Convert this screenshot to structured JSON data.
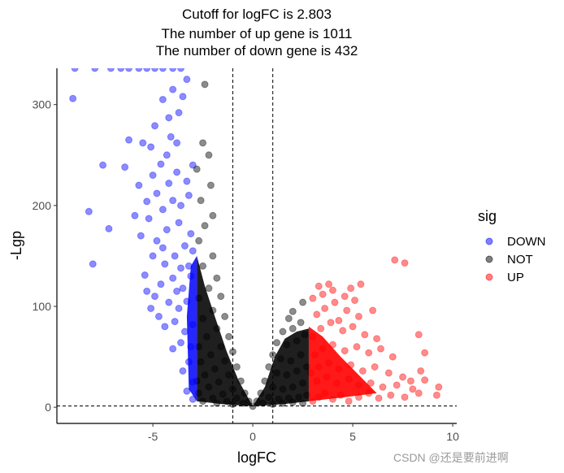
{
  "chart_data": {
    "type": "scatter",
    "title_lines": [
      "Cutoff for logFC is 2.803",
      "The number of up gene is 1011",
      "The number of down gene is 432"
    ],
    "xlabel": "logFC",
    "ylabel": "-Lgp",
    "xlim": [
      -9.8,
      10.2
    ],
    "ylim": [
      -16,
      336
    ],
    "x_ticks": [
      -5,
      0,
      5,
      10
    ],
    "y_ticks": [
      0,
      100,
      200,
      300
    ],
    "x_tick_labels": [
      "-5",
      "0",
      "5",
      "10"
    ],
    "y_tick_labels": [
      "0",
      "100",
      "200",
      "300"
    ],
    "vlines": [
      -1,
      1
    ],
    "hline": 1.3,
    "cutoff_logfc": 2.803,
    "grid": false,
    "legend": {
      "title": "sig",
      "placement": "right",
      "entries": [
        {
          "label": "DOWN",
          "color": "#0000ff"
        },
        {
          "label": "NOT",
          "color": "#000000"
        },
        {
          "label": "UP",
          "color": "#ff0000"
        }
      ]
    },
    "counts": {
      "up": 1011,
      "down": 432
    },
    "series": [
      {
        "name": "DOWN",
        "color": "#0000ff",
        "points": [
          [
            -8.9,
            336
          ],
          [
            -7.9,
            336
          ],
          [
            -7.1,
            336
          ],
          [
            -6.6,
            336
          ],
          [
            -6.2,
            336
          ],
          [
            -5.7,
            336
          ],
          [
            -5.3,
            336
          ],
          [
            -4.9,
            336
          ],
          [
            -4.5,
            336
          ],
          [
            -4.0,
            336
          ],
          [
            -3.6,
            336
          ],
          [
            -9.0,
            306
          ],
          [
            -7.5,
            240
          ],
          [
            -8.2,
            194
          ],
          [
            -8.0,
            142
          ],
          [
            -7.2,
            177
          ],
          [
            -6.2,
            265
          ],
          [
            -6.4,
            238
          ],
          [
            -5.5,
            262
          ],
          [
            -4.9,
            279
          ],
          [
            -4.5,
            305
          ],
          [
            -4.0,
            315
          ],
          [
            -3.5,
            308
          ],
          [
            -3.3,
            325
          ],
          [
            -4.2,
            287
          ],
          [
            -3.7,
            292
          ],
          [
            -5.1,
            258
          ],
          [
            -5.7,
            220
          ],
          [
            -5.0,
            230
          ],
          [
            -4.6,
            241
          ],
          [
            -4.2,
            222
          ],
          [
            -3.8,
            233
          ],
          [
            -3.3,
            224
          ],
          [
            -3.0,
            240
          ],
          [
            -3.2,
            210
          ],
          [
            -3.6,
            200
          ],
          [
            -4.0,
            205
          ],
          [
            -4.5,
            196
          ],
          [
            -5.2,
            187
          ],
          [
            -5.6,
            170
          ],
          [
            -4.8,
            165
          ],
          [
            -4.3,
            176
          ],
          [
            -3.7,
            183
          ],
          [
            -3.1,
            172
          ],
          [
            -3.4,
            160
          ],
          [
            -3.9,
            150
          ],
          [
            -4.4,
            142
          ],
          [
            -5.0,
            150
          ],
          [
            -5.4,
            131
          ],
          [
            -4.6,
            122
          ],
          [
            -4.0,
            128
          ],
          [
            -3.5,
            118
          ],
          [
            -3.1,
            130
          ],
          [
            -3.3,
            105
          ],
          [
            -3.7,
            98
          ],
          [
            -4.2,
            104
          ],
          [
            -4.7,
            90
          ],
          [
            -5.1,
            98
          ],
          [
            -4.4,
            80
          ],
          [
            -3.9,
            85
          ],
          [
            -3.4,
            75
          ],
          [
            -3.0,
            82
          ],
          [
            -3.1,
            60
          ],
          [
            -3.6,
            64
          ],
          [
            -4.0,
            58
          ],
          [
            -3.2,
            45
          ],
          [
            -3.5,
            36
          ],
          [
            -3.0,
            25
          ],
          [
            -3.3,
            16
          ],
          [
            -3.0,
            8
          ],
          [
            -4.3,
            250
          ],
          [
            -4.8,
            212
          ],
          [
            -5.3,
            204
          ],
          [
            -3.8,
            262
          ],
          [
            -4.1,
            268
          ],
          [
            -5.9,
            190
          ],
          [
            -4.9,
            110
          ],
          [
            -3.8,
            115
          ],
          [
            -3.2,
            140
          ],
          [
            -3.0,
            155
          ],
          [
            -3.6,
            138
          ],
          [
            -4.5,
            158
          ],
          [
            -5.3,
            115
          ]
        ]
      },
      {
        "name": "NOT",
        "color": "#000000",
        "points": [
          [
            -2.4,
            320
          ],
          [
            -2.2,
            250
          ],
          [
            -2.5,
            262
          ],
          [
            -2.8,
            236
          ],
          [
            -2.1,
            220
          ],
          [
            -2.6,
            205
          ],
          [
            -2.0,
            190
          ],
          [
            -2.4,
            180
          ],
          [
            -2.7,
            165
          ],
          [
            -2.0,
            150
          ],
          [
            -2.5,
            140
          ],
          [
            -1.8,
            128
          ],
          [
            -2.2,
            118
          ],
          [
            -2.7,
            108
          ],
          [
            -1.6,
            110
          ],
          [
            -2.0,
            96
          ],
          [
            -2.5,
            88
          ],
          [
            -1.4,
            90
          ],
          [
            -1.8,
            78
          ],
          [
            -2.3,
            70
          ],
          [
            -2.7,
            60
          ],
          [
            -1.2,
            70
          ],
          [
            -1.6,
            60
          ],
          [
            -2.1,
            52
          ],
          [
            -2.6,
            45
          ],
          [
            -1.0,
            55
          ],
          [
            -1.4,
            46
          ],
          [
            -1.9,
            38
          ],
          [
            -2.4,
            32
          ],
          [
            -2.8,
            26
          ],
          [
            -0.8,
            40
          ],
          [
            -1.2,
            32
          ],
          [
            -1.7,
            25
          ],
          [
            -2.2,
            20
          ],
          [
            -2.7,
            14
          ],
          [
            -0.6,
            26
          ],
          [
            -1.0,
            18
          ],
          [
            -1.5,
            13
          ],
          [
            -2.0,
            9
          ],
          [
            -2.5,
            6
          ],
          [
            -0.4,
            14
          ],
          [
            -0.8,
            9
          ],
          [
            -1.3,
            6
          ],
          [
            -1.8,
            4
          ],
          [
            -0.2,
            6
          ],
          [
            -0.5,
            4
          ],
          [
            -1.0,
            3
          ],
          [
            0.0,
            1
          ],
          [
            0.2,
            6
          ],
          [
            0.5,
            4
          ],
          [
            1.0,
            3
          ],
          [
            1.5,
            4
          ],
          [
            2.0,
            5
          ],
          [
            2.5,
            4
          ],
          [
            0.4,
            14
          ],
          [
            0.8,
            10
          ],
          [
            1.3,
            8
          ],
          [
            1.8,
            9
          ],
          [
            2.3,
            10
          ],
          [
            2.7,
            12
          ],
          [
            0.6,
            26
          ],
          [
            1.0,
            20
          ],
          [
            1.5,
            18
          ],
          [
            2.0,
            20
          ],
          [
            2.5,
            24
          ],
          [
            0.8,
            40
          ],
          [
            1.2,
            34
          ],
          [
            1.7,
            32
          ],
          [
            2.2,
            36
          ],
          [
            2.7,
            40
          ],
          [
            1.0,
            52
          ],
          [
            1.4,
            48
          ],
          [
            1.9,
            46
          ],
          [
            2.4,
            52
          ],
          [
            1.2,
            64
          ],
          [
            1.7,
            62
          ],
          [
            2.2,
            66
          ],
          [
            2.6,
            72
          ],
          [
            1.5,
            75
          ],
          [
            2.0,
            78
          ],
          [
            2.4,
            84
          ],
          [
            2.0,
            95
          ],
          [
            2.5,
            104
          ],
          [
            1.8,
            88
          ]
        ]
      },
      {
        "name": "UP",
        "color": "#ff0000",
        "points": [
          [
            3.0,
            6
          ],
          [
            3.3,
            10
          ],
          [
            3.6,
            14
          ],
          [
            4.0,
            8
          ],
          [
            4.4,
            12
          ],
          [
            4.8,
            6
          ],
          [
            5.3,
            10
          ],
          [
            5.8,
            14
          ],
          [
            6.3,
            9
          ],
          [
            6.9,
            12
          ],
          [
            7.6,
            10
          ],
          [
            8.3,
            14
          ],
          [
            9.2,
            12
          ],
          [
            9.3,
            20
          ],
          [
            8.0,
            18
          ],
          [
            7.2,
            22
          ],
          [
            6.5,
            20
          ],
          [
            5.9,
            24
          ],
          [
            5.3,
            22
          ],
          [
            4.8,
            28
          ],
          [
            4.2,
            24
          ],
          [
            3.7,
            30
          ],
          [
            3.2,
            26
          ],
          [
            2.9,
            34
          ],
          [
            3.3,
            40
          ],
          [
            3.8,
            44
          ],
          [
            4.3,
            38
          ],
          [
            4.9,
            42
          ],
          [
            5.5,
            36
          ],
          [
            6.1,
            40
          ],
          [
            6.8,
            34
          ],
          [
            7.5,
            30
          ],
          [
            8.4,
            36
          ],
          [
            8.6,
            27
          ],
          [
            7.9,
            26
          ],
          [
            3.1,
            52
          ],
          [
            3.5,
            58
          ],
          [
            4.0,
            62
          ],
          [
            4.6,
            56
          ],
          [
            5.2,
            60
          ],
          [
            5.8,
            54
          ],
          [
            6.4,
            58
          ],
          [
            7.0,
            50
          ],
          [
            3.0,
            70
          ],
          [
            3.4,
            78
          ],
          [
            3.9,
            84
          ],
          [
            4.5,
            76
          ],
          [
            5.0,
            80
          ],
          [
            5.6,
            72
          ],
          [
            6.2,
            68
          ],
          [
            3.2,
            92
          ],
          [
            3.6,
            98
          ],
          [
            4.1,
            104
          ],
          [
            4.7,
            96
          ],
          [
            5.3,
            90
          ],
          [
            3.5,
            112
          ],
          [
            4.0,
            116
          ],
          [
            4.6,
            110
          ],
          [
            5.1,
            106
          ],
          [
            3.8,
            122
          ],
          [
            3.3,
            120
          ],
          [
            7.1,
            146
          ],
          [
            7.6,
            143
          ],
          [
            5.4,
            122
          ],
          [
            8.3,
            72
          ],
          [
            8.6,
            54
          ],
          [
            4.3,
            86
          ],
          [
            3.0,
            108
          ],
          [
            4.9,
            118
          ],
          [
            6.0,
            96
          ]
        ]
      }
    ]
  },
  "watermark": "CSDN @还是要前进啊"
}
